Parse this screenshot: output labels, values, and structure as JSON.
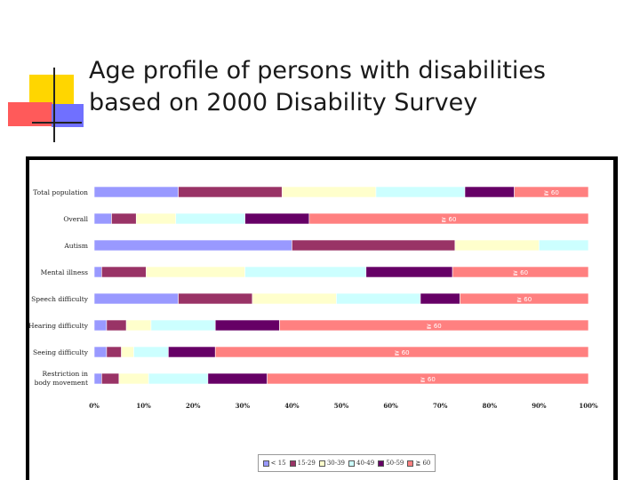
{
  "slide": {
    "title_line1": "Age profile of persons with disabilities",
    "title_line2": "based on 2000 Disability Survey"
  },
  "colors": {
    "accent_yellow": "#ffd600",
    "accent_red": "#ff5050",
    "accent_blue": "#7474ff",
    "rule": "#222222"
  },
  "chart_data": {
    "type": "bar",
    "orientation": "horizontal",
    "stacked": true,
    "categories": [
      "Total population",
      "Overall",
      "Autism",
      "Mental illness",
      "Speech difficulty",
      "Hearing difficulty",
      "Seeing difficulty",
      "Restriction in body movement"
    ],
    "category_lines": [
      [
        "Total population"
      ],
      [
        "Overall"
      ],
      [
        "Autism"
      ],
      [
        "Mental illness"
      ],
      [
        "Speech difficulty"
      ],
      [
        "Hearing difficulty"
      ],
      [
        "Seeing difficulty"
      ],
      [
        "Restriction in",
        "body movement"
      ]
    ],
    "series": [
      {
        "name": "< 15",
        "color": "#9999ff",
        "values": [
          17,
          3.5,
          40,
          1.5,
          17,
          2.5,
          2.5,
          1.5
        ]
      },
      {
        "name": "15-29",
        "color": "#993366",
        "values": [
          21,
          5,
          33,
          9,
          15,
          4,
          3,
          3.5
        ]
      },
      {
        "name": "30-39",
        "color": "#ffffcc",
        "values": [
          19,
          8,
          17,
          20,
          17,
          5,
          2.5,
          6
        ]
      },
      {
        "name": "40-49",
        "color": "#ccffff",
        "values": [
          18,
          14,
          10,
          24.5,
          17,
          13,
          7,
          12
        ]
      },
      {
        "name": "50-59",
        "color": "#660066",
        "values": [
          10,
          13,
          0,
          17.5,
          8,
          13,
          9.5,
          12
        ]
      },
      {
        "name": "≧ 60",
        "color": "#ff8080",
        "values": [
          15,
          56.5,
          0,
          27.5,
          26,
          62.5,
          75.5,
          65
        ]
      }
    ],
    "segment_labels": [
      "≧ 60",
      "≧ 60",
      "",
      "≧ 60",
      "≧ 60",
      "≧ 60",
      "≧ 60",
      "≧ 60"
    ],
    "xlim": [
      0,
      100
    ],
    "x_ticks": [
      "0%",
      "10%",
      "20%",
      "30%",
      "40%",
      "50%",
      "60%",
      "70%",
      "80%",
      "90%",
      "100%"
    ],
    "legend_position": "bottom",
    "grid": false
  }
}
